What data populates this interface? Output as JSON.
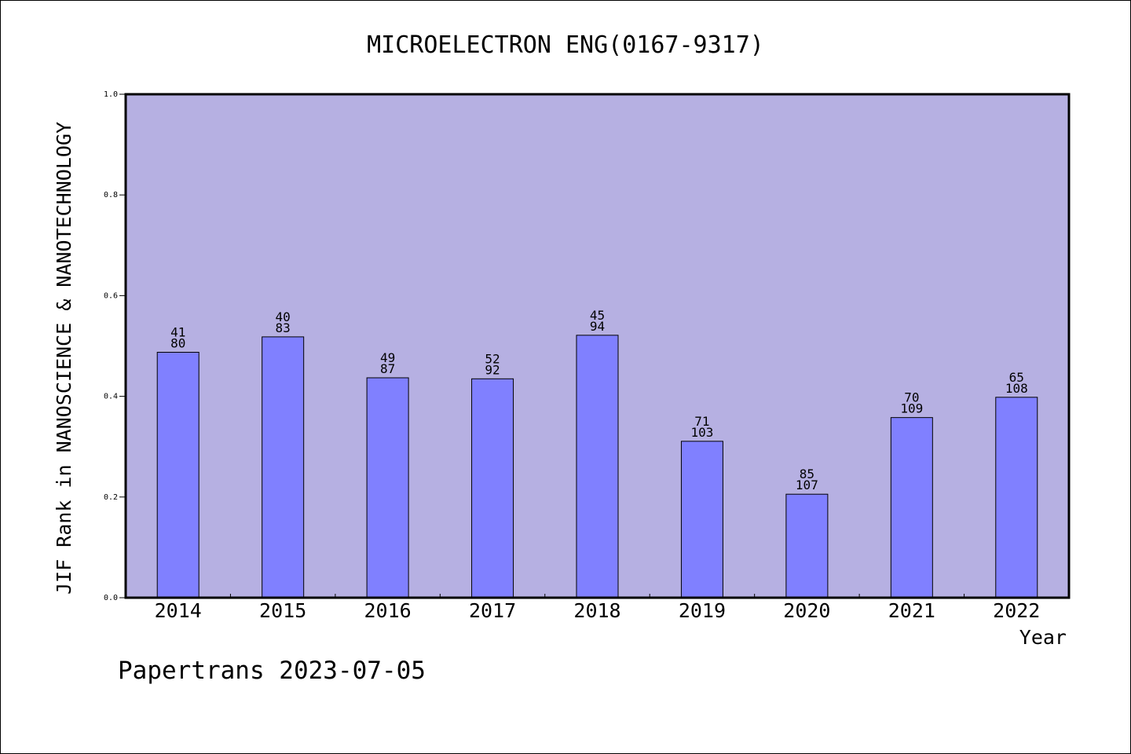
{
  "chart_data": {
    "type": "bar",
    "title": "MICROELECTRON ENG(0167-9317)",
    "xlabel": "Year",
    "ylabel": "JIF Rank in NANOSCIENCE & NANOTECHNOLOGY",
    "ylim": [
      0,
      1.0
    ],
    "yticks": [
      "0.0",
      "0.2",
      "0.4",
      "0.6",
      "0.8",
      "1.0"
    ],
    "categories": [
      "2014",
      "2015",
      "2016",
      "2017",
      "2018",
      "2019",
      "2020",
      "2021",
      "2022"
    ],
    "values": [
      0.4875,
      0.5181,
      0.4368,
      0.4348,
      0.5213,
      0.3107,
      0.2056,
      0.3578,
      0.3981
    ],
    "labels_top": [
      "41",
      "40",
      "49",
      "52",
      "45",
      "71",
      "85",
      "70",
      "65"
    ],
    "labels_bottom": [
      "80",
      "83",
      "87",
      "92",
      "94",
      "103",
      "107",
      "109",
      "108"
    ],
    "grid": false,
    "colors": {
      "plot_bg": "#b6b0e2",
      "bar": "#8080ff",
      "bar_edge": "#000000"
    }
  },
  "footer": "Papertrans 2023-07-05"
}
